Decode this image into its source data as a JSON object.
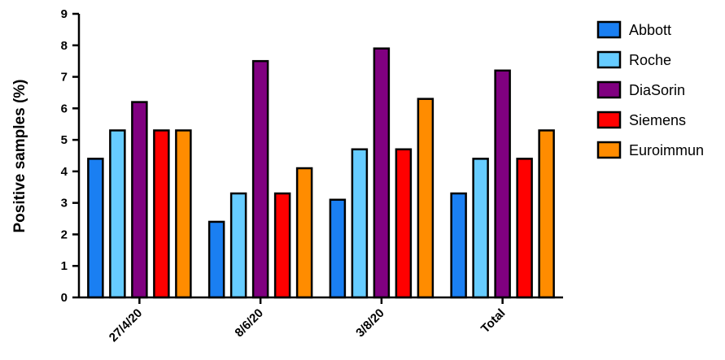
{
  "chart_data": {
    "type": "bar",
    "title": "",
    "xlabel": "",
    "ylabel": "Positive samples (%)",
    "ylim": [
      0,
      9
    ],
    "yticks": [
      0,
      1,
      2,
      3,
      4,
      5,
      6,
      7,
      8,
      9
    ],
    "grid": false,
    "legend_position": "right",
    "categories": [
      "27/4/20",
      "8/6/20",
      "3/8/20",
      "Total"
    ],
    "series": [
      {
        "name": "Abbott",
        "color": "#1a7ff2",
        "values": [
          4.4,
          2.4,
          3.1,
          3.3
        ]
      },
      {
        "name": "Roche",
        "color": "#66ccff",
        "values": [
          5.3,
          3.3,
          4.7,
          4.4
        ]
      },
      {
        "name": "DiaSorin",
        "color": "#800080",
        "values": [
          6.2,
          7.5,
          7.9,
          7.2
        ]
      },
      {
        "name": "Siemens",
        "color": "#ff0000",
        "values": [
          5.3,
          3.3,
          4.7,
          4.4
        ]
      },
      {
        "name": "Euroimmun",
        "color": "#ff8c00",
        "values": [
          5.3,
          4.1,
          6.3,
          5.3
        ]
      }
    ]
  }
}
